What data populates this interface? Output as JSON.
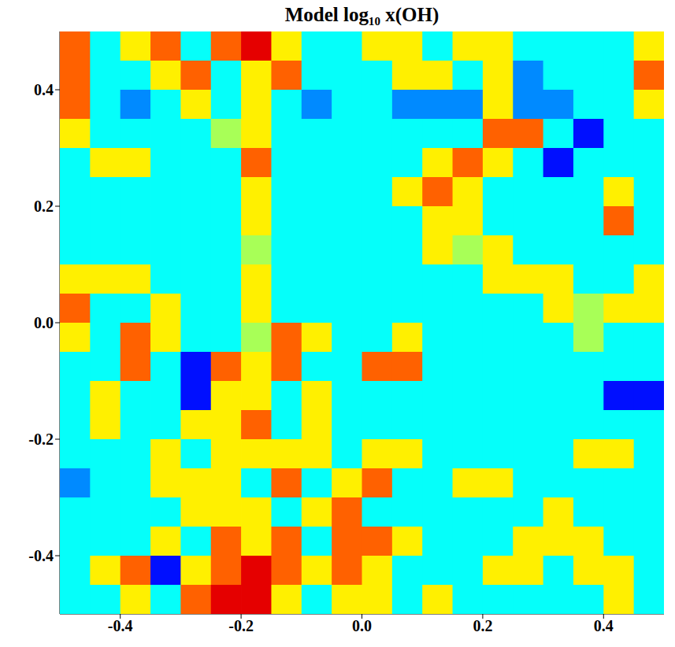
{
  "chart_data": {
    "type": "heatmap",
    "title": "Model log₁₀ x(OH)",
    "xlim": [
      -0.5,
      0.5
    ],
    "ylim": [
      -0.5,
      0.5
    ],
    "xticks": [
      -0.4,
      -0.2,
      {
        "value": 0,
        "label": "0.0"
      },
      0.2,
      0.4
    ],
    "yticks": [
      -0.4,
      -0.2,
      {
        "value": 0,
        "label": "0.0"
      },
      0.2,
      0.4
    ],
    "zlim": [
      -10,
      -5
    ],
    "x": [
      -0.475,
      -0.425,
      -0.375,
      -0.325,
      -0.275,
      -0.225,
      -0.175,
      -0.125,
      -0.075,
      -0.025,
      0.025,
      0.075,
      0.125,
      0.175,
      0.225,
      0.275,
      0.325,
      0.375,
      0.425,
      0.475
    ],
    "y": [
      0.475,
      0.425,
      0.375,
      0.325,
      0.275,
      0.225,
      0.175,
      0.125,
      0.075,
      0.025,
      -0.025,
      -0.075,
      -0.125,
      -0.175,
      -0.225,
      -0.275,
      -0.325,
      -0.375,
      -0.425,
      -0.475
    ],
    "z": [
      [
        -6.1,
        -8.1,
        -6.8,
        -6.1,
        -8.1,
        -6.1,
        -5.5,
        -6.8,
        -8.1,
        -8.1,
        -6.8,
        -6.8,
        -8.1,
        -6.8,
        -6.8,
        -8.1,
        -8.1,
        -8.1,
        -8.1,
        -6.8
      ],
      [
        -6.1,
        -8.1,
        -8.1,
        -6.8,
        -6.1,
        -8.1,
        -6.8,
        -6.1,
        -8.1,
        -8.1,
        -8.1,
        -6.8,
        -6.8,
        -8.1,
        -6.8,
        -8.7,
        -8.1,
        -8.1,
        -8.1,
        -6.1
      ],
      [
        -6.1,
        -8.1,
        -8.7,
        -8.1,
        -6.8,
        -8.1,
        -6.8,
        -8.1,
        -8.7,
        -8.1,
        -8.1,
        -8.7,
        -8.7,
        -8.7,
        -6.8,
        -8.7,
        -8.7,
        -8.1,
        -8.1,
        -6.8
      ],
      [
        -6.8,
        -8.1,
        -8.1,
        -8.1,
        -8.1,
        -7.3,
        -6.8,
        -8.1,
        -8.1,
        -8.1,
        -8.1,
        -8.1,
        -8.1,
        -8.1,
        -6.1,
        -6.1,
        -8.1,
        -9.3,
        -8.1,
        -8.1
      ],
      [
        -8.1,
        -6.8,
        -6.8,
        -8.1,
        -8.1,
        -8.1,
        -6.1,
        -8.1,
        -8.1,
        -8.1,
        -8.1,
        -8.1,
        -6.8,
        -6.1,
        -6.8,
        -8.1,
        -9.3,
        -8.1,
        -8.1,
        -8.1
      ],
      [
        -8.1,
        -8.1,
        -8.1,
        -8.1,
        -8.1,
        -8.1,
        -6.8,
        -8.1,
        -8.1,
        -8.1,
        -8.1,
        -6.8,
        -6.1,
        -6.8,
        -8.1,
        -8.1,
        -8.1,
        -8.1,
        -6.8,
        -8.1
      ],
      [
        -8.1,
        -8.1,
        -8.1,
        -8.1,
        -8.1,
        -8.1,
        -6.8,
        -8.1,
        -8.1,
        -8.1,
        -8.1,
        -8.1,
        -6.8,
        -6.8,
        -8.1,
        -8.1,
        -8.1,
        -8.1,
        -6.1,
        -8.1
      ],
      [
        -8.1,
        -8.1,
        -8.1,
        -8.1,
        -8.1,
        -8.1,
        -7.3,
        -8.1,
        -8.1,
        -8.1,
        -8.1,
        -8.1,
        -6.8,
        -7.3,
        -6.8,
        -8.1,
        -8.1,
        -8.1,
        -8.1,
        -8.1
      ],
      [
        -6.8,
        -6.8,
        -6.8,
        -8.1,
        -8.1,
        -8.1,
        -6.8,
        -8.1,
        -8.1,
        -8.1,
        -8.1,
        -8.1,
        -8.1,
        -8.1,
        -6.8,
        -6.8,
        -6.8,
        -8.1,
        -8.1,
        -6.8
      ],
      [
        -6.1,
        -8.1,
        -8.1,
        -6.8,
        -8.1,
        -8.1,
        -6.8,
        -8.1,
        -8.1,
        -8.1,
        -8.1,
        -8.1,
        -8.1,
        -8.1,
        -8.1,
        -8.1,
        -6.8,
        -7.3,
        -6.8,
        -6.8
      ],
      [
        -6.8,
        -8.1,
        -6.1,
        -6.8,
        -8.1,
        -8.1,
        -7.3,
        -6.1,
        -6.8,
        -8.1,
        -8.1,
        -6.8,
        -8.1,
        -8.1,
        -8.1,
        -8.1,
        -8.1,
        -7.3,
        -8.1,
        -8.1
      ],
      [
        -8.1,
        -8.1,
        -6.1,
        -8.1,
        -9.3,
        -6.1,
        -6.8,
        -6.1,
        -8.1,
        -8.1,
        -6.1,
        -6.1,
        -8.1,
        -8.1,
        -8.1,
        -8.1,
        -8.1,
        -8.1,
        -8.1,
        -8.1
      ],
      [
        -8.1,
        -6.8,
        -8.1,
        -8.1,
        -9.3,
        -6.8,
        -6.8,
        -8.1,
        -6.8,
        -8.1,
        -8.1,
        -8.1,
        -8.1,
        -8.1,
        -8.1,
        -8.1,
        -8.1,
        -8.1,
        -9.3,
        -9.3
      ],
      [
        -8.1,
        -6.8,
        -8.1,
        -8.1,
        -6.8,
        -6.8,
        -6.1,
        -8.1,
        -6.8,
        -8.1,
        -8.1,
        -8.1,
        -8.1,
        -8.1,
        -8.1,
        -8.1,
        -8.1,
        -8.1,
        -8.1,
        -8.1
      ],
      [
        -8.1,
        -8.1,
        -8.1,
        -6.8,
        -8.1,
        -6.8,
        -6.8,
        -6.8,
        -6.8,
        -8.1,
        -6.8,
        -6.8,
        -8.1,
        -8.1,
        -8.1,
        -8.1,
        -8.1,
        -6.8,
        -6.8,
        -8.1
      ],
      [
        -8.7,
        -8.1,
        -8.1,
        -6.8,
        -6.8,
        -6.8,
        -8.1,
        -6.1,
        -8.1,
        -6.8,
        -6.1,
        -8.1,
        -8.1,
        -6.8,
        -6.8,
        -8.1,
        -8.1,
        -8.1,
        -8.1,
        -8.1
      ],
      [
        -8.1,
        -8.1,
        -8.1,
        -8.1,
        -6.8,
        -6.8,
        -6.8,
        -8.1,
        -6.8,
        -6.1,
        -8.1,
        -8.1,
        -8.1,
        -8.1,
        -8.1,
        -8.1,
        -6.8,
        -8.1,
        -8.1,
        -8.1
      ],
      [
        -8.1,
        -8.1,
        -8.1,
        -6.8,
        -8.1,
        -6.1,
        -6.8,
        -6.1,
        -8.1,
        -6.1,
        -6.1,
        -6.8,
        -8.1,
        -8.1,
        -8.1,
        -6.8,
        -6.8,
        -6.8,
        -8.1,
        -8.1
      ],
      [
        -8.1,
        -6.8,
        -6.1,
        -9.3,
        -6.8,
        -6.1,
        -5.5,
        -6.1,
        -6.8,
        -6.1,
        -6.8,
        -8.1,
        -8.1,
        -8.1,
        -6.8,
        -6.8,
        -8.1,
        -6.8,
        -6.8,
        -8.1
      ],
      [
        -8.1,
        -8.1,
        -6.8,
        -8.1,
        -6.1,
        -5.5,
        -5.5,
        -6.8,
        -8.1,
        -6.8,
        -6.8,
        -8.1,
        -6.8,
        -8.1,
        -8.1,
        -8.1,
        -8.1,
        -8.1,
        -6.8,
        -8.1
      ]
    ]
  }
}
